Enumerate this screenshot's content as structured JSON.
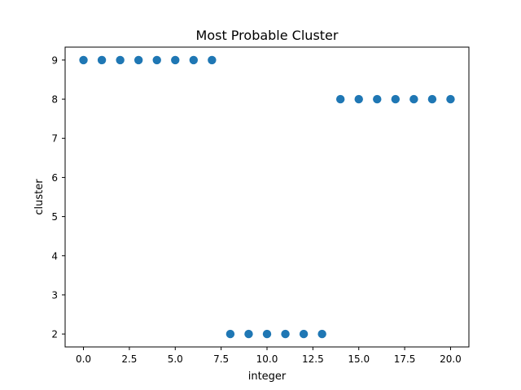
{
  "chart_data": {
    "type": "scatter",
    "title": "Most Probable Cluster",
    "xlabel": "integer",
    "ylabel": "cluster",
    "xlim": [
      -1.0,
      21.0
    ],
    "ylim": [
      1.67,
      9.33
    ],
    "xticks": [
      0.0,
      2.5,
      5.0,
      7.5,
      10.0,
      12.5,
      15.0,
      17.5,
      20.0
    ],
    "xtick_labels": [
      "0.0",
      "2.5",
      "5.0",
      "7.5",
      "10.0",
      "12.5",
      "15.0",
      "17.5",
      "20.0"
    ],
    "yticks": [
      2,
      3,
      4,
      5,
      6,
      7,
      8,
      9
    ],
    "ytick_labels": [
      "2",
      "3",
      "4",
      "5",
      "6",
      "7",
      "8",
      "9"
    ],
    "grid": false,
    "marker_color": "#1f77b4",
    "series": [
      {
        "x": [
          0,
          1,
          2,
          3,
          4,
          5,
          6,
          7,
          8,
          9,
          10,
          11,
          12,
          13,
          14,
          15,
          16,
          17,
          18,
          19,
          20
        ],
        "y": [
          9,
          9,
          9,
          9,
          9,
          9,
          9,
          9,
          2,
          2,
          2,
          2,
          2,
          2,
          8,
          8,
          8,
          8,
          8,
          8,
          8
        ]
      }
    ]
  }
}
